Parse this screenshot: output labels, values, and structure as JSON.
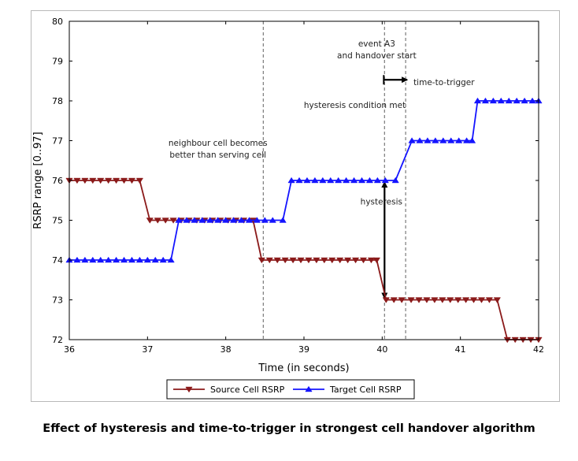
{
  "caption": "Effect of hysteresis and time-to-trigger in strongest cell handover algorithm",
  "chart_data": {
    "type": "line",
    "xlabel": "Time (in seconds)",
    "ylabel": "RSRP range [0..97]",
    "xlim": [
      36,
      42
    ],
    "ylim": [
      72,
      80
    ],
    "xticks": [
      36,
      37,
      38,
      39,
      40,
      41,
      42
    ],
    "yticks": [
      72,
      73,
      74,
      75,
      76,
      77,
      78,
      79,
      80
    ],
    "grid": false,
    "legend_position": "bottom-center, below plot",
    "series": [
      {
        "name": "Source Cell RSRP",
        "color": "#8b1a1a",
        "marker": "triangle-down",
        "points": [
          [
            36.0,
            76
          ],
          [
            36.1,
            76
          ],
          [
            36.2,
            76
          ],
          [
            36.3,
            76
          ],
          [
            36.4,
            76
          ],
          [
            36.5,
            76
          ],
          [
            36.6,
            76
          ],
          [
            36.7,
            76
          ],
          [
            36.8,
            76
          ],
          [
            36.9,
            76
          ],
          [
            37.03,
            75
          ],
          [
            37.13,
            75
          ],
          [
            37.23,
            75
          ],
          [
            37.33,
            75
          ],
          [
            37.43,
            75
          ],
          [
            37.53,
            75
          ],
          [
            37.63,
            75
          ],
          [
            37.73,
            75
          ],
          [
            37.83,
            75
          ],
          [
            37.93,
            75
          ],
          [
            38.03,
            75
          ],
          [
            38.13,
            75
          ],
          [
            38.23,
            75
          ],
          [
            38.35,
            75
          ],
          [
            38.46,
            74
          ],
          [
            38.56,
            74
          ],
          [
            38.66,
            74
          ],
          [
            38.76,
            74
          ],
          [
            38.86,
            74
          ],
          [
            38.96,
            74
          ],
          [
            39.06,
            74
          ],
          [
            39.16,
            74
          ],
          [
            39.26,
            74
          ],
          [
            39.36,
            74
          ],
          [
            39.46,
            74
          ],
          [
            39.56,
            74
          ],
          [
            39.66,
            74
          ],
          [
            39.76,
            74
          ],
          [
            39.86,
            74
          ],
          [
            39.93,
            74
          ],
          [
            40.05,
            73
          ],
          [
            40.15,
            73
          ],
          [
            40.25,
            73
          ],
          [
            40.37,
            73
          ],
          [
            40.47,
            73
          ],
          [
            40.57,
            73
          ],
          [
            40.67,
            73
          ],
          [
            40.77,
            73
          ],
          [
            40.87,
            73
          ],
          [
            40.97,
            73
          ],
          [
            41.07,
            73
          ],
          [
            41.17,
            73
          ],
          [
            41.27,
            73
          ],
          [
            41.37,
            73
          ],
          [
            41.47,
            73
          ],
          [
            41.6,
            72
          ],
          [
            41.7,
            72
          ],
          [
            41.8,
            72
          ],
          [
            41.9,
            72
          ],
          [
            42.0,
            72
          ]
        ]
      },
      {
        "name": "Target Cell RSRP",
        "color": "#1414ff",
        "marker": "triangle-up",
        "points": [
          [
            36.0,
            74
          ],
          [
            36.1,
            74
          ],
          [
            36.2,
            74
          ],
          [
            36.3,
            74
          ],
          [
            36.4,
            74
          ],
          [
            36.5,
            74
          ],
          [
            36.6,
            74
          ],
          [
            36.7,
            74
          ],
          [
            36.8,
            74
          ],
          [
            36.9,
            74
          ],
          [
            37.0,
            74
          ],
          [
            37.1,
            74
          ],
          [
            37.2,
            74
          ],
          [
            37.3,
            74
          ],
          [
            37.4,
            75
          ],
          [
            37.5,
            75
          ],
          [
            37.6,
            75
          ],
          [
            37.7,
            75
          ],
          [
            37.8,
            75
          ],
          [
            37.9,
            75
          ],
          [
            38.0,
            75
          ],
          [
            38.1,
            75
          ],
          [
            38.2,
            75
          ],
          [
            38.3,
            75
          ],
          [
            38.4,
            75
          ],
          [
            38.5,
            75
          ],
          [
            38.6,
            75
          ],
          [
            38.73,
            75
          ],
          [
            38.84,
            76
          ],
          [
            38.94,
            76
          ],
          [
            39.04,
            76
          ],
          [
            39.14,
            76
          ],
          [
            39.24,
            76
          ],
          [
            39.34,
            76
          ],
          [
            39.44,
            76
          ],
          [
            39.54,
            76
          ],
          [
            39.64,
            76
          ],
          [
            39.74,
            76
          ],
          [
            39.84,
            76
          ],
          [
            39.94,
            76
          ],
          [
            40.04,
            76
          ],
          [
            40.17,
            76
          ],
          [
            40.38,
            77
          ],
          [
            40.48,
            77
          ],
          [
            40.58,
            77
          ],
          [
            40.68,
            77
          ],
          [
            40.78,
            77
          ],
          [
            40.88,
            77
          ],
          [
            40.98,
            77
          ],
          [
            41.08,
            77
          ],
          [
            41.15,
            77
          ],
          [
            41.22,
            78
          ],
          [
            41.32,
            78
          ],
          [
            41.42,
            78
          ],
          [
            41.52,
            78
          ],
          [
            41.62,
            78
          ],
          [
            41.72,
            78
          ],
          [
            41.82,
            78
          ],
          [
            41.92,
            78
          ],
          [
            42.0,
            78
          ]
        ]
      }
    ],
    "annotations": [
      {
        "type": "vline",
        "x": 38.48,
        "style": "dashed"
      },
      {
        "type": "vline",
        "x": 40.03,
        "style": "dashed"
      },
      {
        "type": "vline",
        "x": 40.3,
        "style": "dashed"
      },
      {
        "type": "text",
        "text": "neighbour cell becomes",
        "x": 37.9,
        "y": 76.95
      },
      {
        "type": "text",
        "text": "better than serving cell",
        "x": 37.9,
        "y": 76.65
      },
      {
        "type": "text",
        "text": "hysteresis condition met",
        "x": 39.65,
        "y": 77.9
      },
      {
        "type": "text",
        "text": "event A3",
        "x": 39.93,
        "y": 79.45
      },
      {
        "type": "text",
        "text": "and handover start",
        "x": 39.93,
        "y": 79.15
      },
      {
        "type": "text",
        "text": "time-to-trigger",
        "x": 40.4,
        "y": 78.48
      },
      {
        "type": "text",
        "text": "hysteresis",
        "x": 39.99,
        "y": 75.48
      },
      {
        "type": "double-arrow",
        "x": 40.03,
        "y_from": 73,
        "y_to": 76
      },
      {
        "type": "arrow",
        "y": 78.53,
        "x_from": 40.02,
        "x_to": 40.32
      }
    ]
  }
}
